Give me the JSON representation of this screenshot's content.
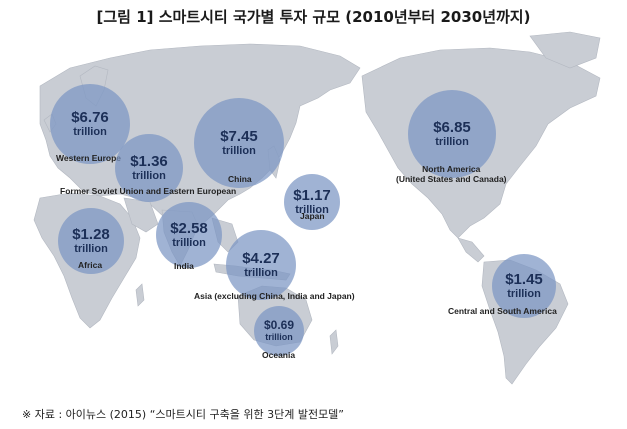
{
  "title": "[그림 1] 스마트시티 국가별 투자 규모 (2010년부터 2030년까지)",
  "unit": "trillion",
  "regions": [
    {
      "key": "western_europe",
      "amount": "$6.76",
      "name": "Western Europe"
    },
    {
      "key": "fsu",
      "amount": "$1.36",
      "name": "Former Soviet Union and Eastern European"
    },
    {
      "key": "china",
      "amount": "$7.45",
      "name": "China"
    },
    {
      "key": "japan",
      "amount": "$1.17",
      "name": "Japan"
    },
    {
      "key": "north_america",
      "amount": "$6.85",
      "name": "North America\n(United States and Canada)"
    },
    {
      "key": "africa",
      "amount": "$1.28",
      "name": "Africa"
    },
    {
      "key": "india",
      "amount": "$2.58",
      "name": "India"
    },
    {
      "key": "asia",
      "amount": "$4.27",
      "name": "Asia (excluding China, India and Japan)"
    },
    {
      "key": "oceania",
      "amount": "$0.69",
      "name": "Oceania"
    },
    {
      "key": "south_america",
      "amount": "$1.45",
      "name": "Central and South America"
    }
  ],
  "source": "※ 자료 : 아이뉴스 (2015) “스마트시티 구축을 위한 3단계 발전모델”",
  "colors": {
    "bubble": "#7c96c4",
    "land": "#c9cdd4",
    "text": "#1c2f57"
  }
}
